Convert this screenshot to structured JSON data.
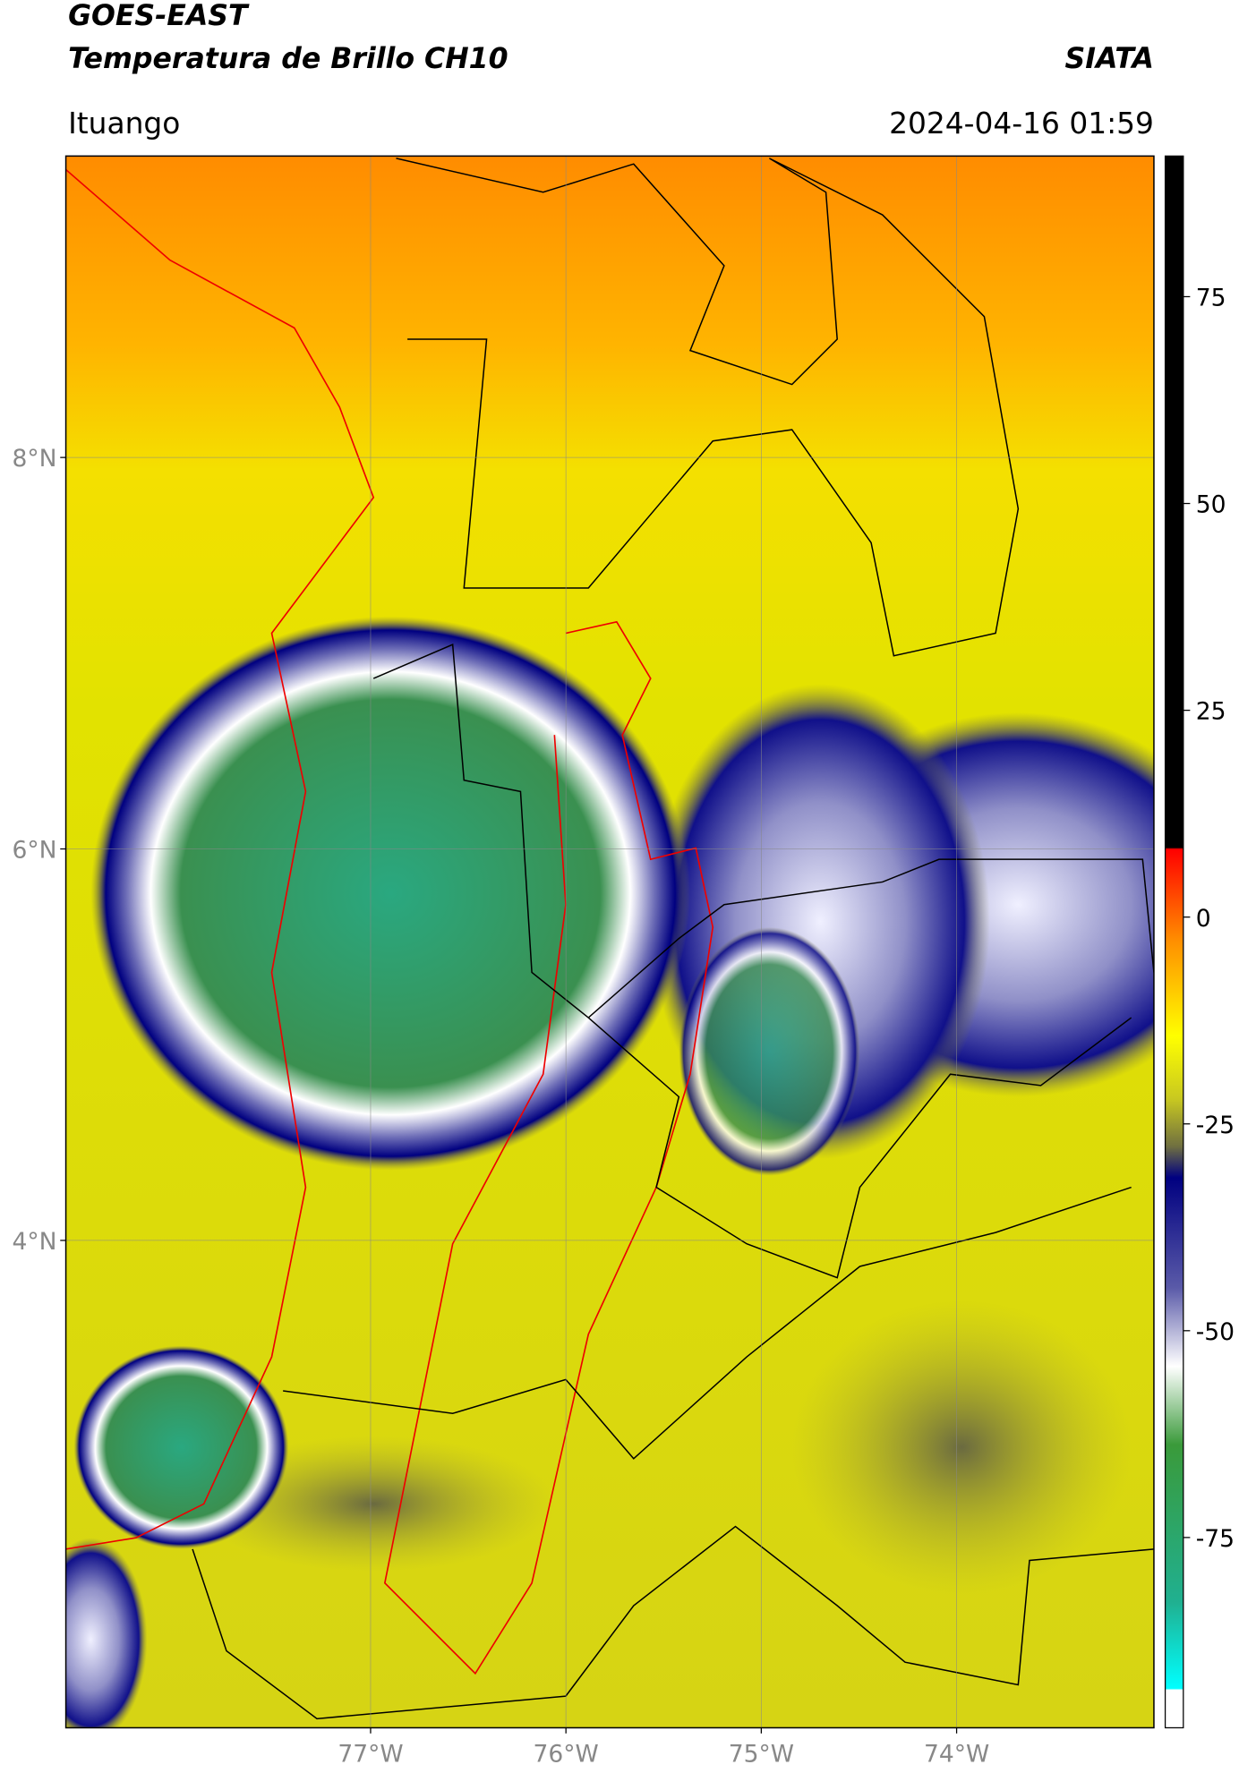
{
  "header": {
    "title": "GOES-EAST",
    "subtitle": "Temperatura de Brillo CH10",
    "source": "SIATA",
    "location": "Ituango",
    "datetime": "2024-04-16 01:59"
  },
  "map": {
    "lat_range": [
      1.51,
      9.54
    ],
    "lon_range": [
      -78.56,
      -72.99
    ],
    "lat_ticks": [
      {
        "value": 8,
        "label": "8°N"
      },
      {
        "value": 6,
        "label": "6°N"
      },
      {
        "value": 4,
        "label": "4°N"
      }
    ],
    "lon_ticks": [
      {
        "value": -77,
        "label": "77°W"
      },
      {
        "value": -76,
        "label": "76°W"
      },
      {
        "value": -75,
        "label": "75°W"
      },
      {
        "value": -74,
        "label": "74°W"
      }
    ]
  },
  "colorbar": {
    "range": [
      -98,
      92
    ],
    "ticks": [
      75,
      50,
      25,
      0,
      -25,
      -50,
      -75
    ]
  }
}
